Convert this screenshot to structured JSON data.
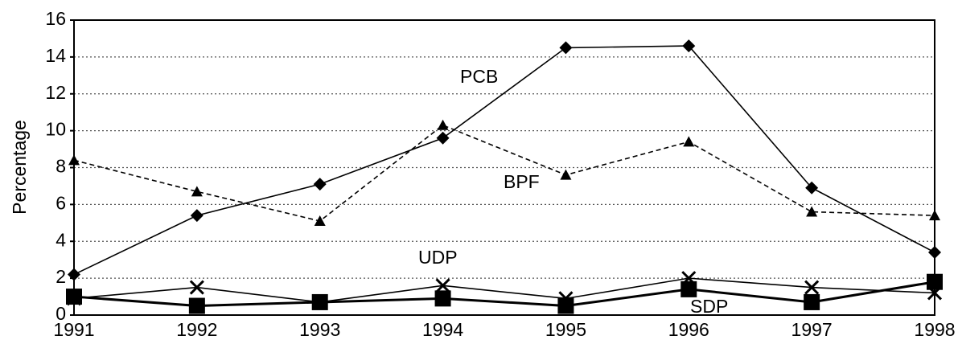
{
  "chart_data": {
    "type": "line",
    "y_label": "Percentage",
    "categories": [
      "1991",
      "1992",
      "1993",
      "1994",
      "1995",
      "1996",
      "1997",
      "1998"
    ],
    "series": [
      {
        "name": "PCB",
        "color": "#000000",
        "marker": "diamond",
        "dashed": false,
        "values": [
          2.2,
          5.4,
          7.1,
          9.6,
          14.5,
          14.6,
          6.9,
          3.4
        ]
      },
      {
        "name": "BPF",
        "color": "#000000",
        "marker": "triangle",
        "dashed": true,
        "values": [
          8.4,
          6.7,
          5.1,
          10.3,
          7.6,
          9.4,
          5.6,
          5.4
        ]
      },
      {
        "name": "UDP",
        "color": "#000000",
        "marker": "x",
        "dashed": false,
        "values": [
          0.9,
          1.5,
          0.7,
          1.6,
          0.9,
          2.0,
          1.5,
          1.2
        ]
      },
      {
        "name": "SDP",
        "color": "#000000",
        "marker": "square",
        "dashed": false,
        "values": [
          1.0,
          0.5,
          0.7,
          0.9,
          0.5,
          1.4,
          0.7,
          1.8
        ]
      }
    ],
    "ylim": [
      0,
      16
    ],
    "yticks": [
      0,
      2,
      4,
      6,
      8,
      10,
      12,
      14,
      16
    ],
    "grid": true
  }
}
